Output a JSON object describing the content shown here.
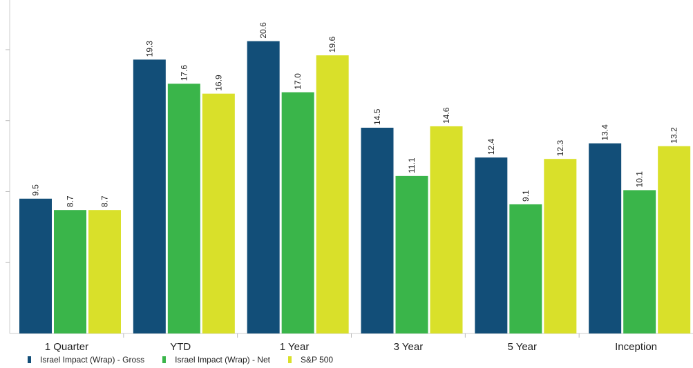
{
  "chart_data": {
    "type": "bar",
    "categories": [
      "1 Quarter",
      "YTD",
      "1 Year",
      "3 Year",
      "5 Year",
      "Inception"
    ],
    "series": [
      {
        "name": "Israel Impact (Wrap) - Gross",
        "color": "#124E78",
        "values": [
          9.5,
          19.3,
          20.6,
          14.5,
          12.4,
          13.4
        ]
      },
      {
        "name": "Israel Impact (Wrap) - Net",
        "color": "#3AB54A",
        "values": [
          8.7,
          17.6,
          17.0,
          11.1,
          9.1,
          10.1
        ]
      },
      {
        "name": "S&P 500",
        "color": "#D9E02A",
        "values": [
          8.7,
          16.9,
          19.6,
          14.6,
          12.3,
          13.2
        ]
      }
    ],
    "labels": [
      [
        "9.5",
        "19.3",
        "20.6",
        "14.5",
        "12.4",
        "13.4"
      ],
      [
        "8.7",
        "17.6",
        "17.0",
        "11.1",
        "9.1",
        "10.1"
      ],
      [
        "8.7",
        "16.9",
        "19.6",
        "14.6",
        "12.3",
        "13.2"
      ]
    ],
    "ylim": [
      0,
      23.5
    ],
    "yticks": [
      0,
      5,
      10,
      15,
      20
    ],
    "grid": false,
    "legend_position": "bottom-left"
  }
}
